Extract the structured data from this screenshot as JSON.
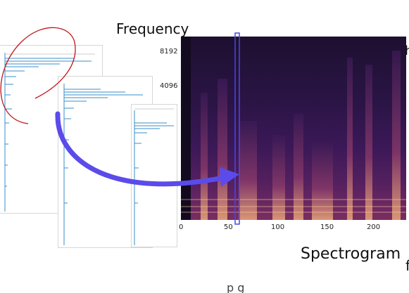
{
  "labels": {
    "frequency": "Frequency",
    "spectrogram": "Spectrogram",
    "cut_right_bottom": "f",
    "cut_right_top": "h",
    "cut_bottom": "p  g"
  },
  "spectrogram": {
    "y_ticks": [
      "8192",
      "4096"
    ],
    "x_ticks": [
      "0",
      "50",
      "100",
      "150",
      "200"
    ]
  },
  "colors": {
    "arrow": "#5b4bea",
    "curve": "#c0181e",
    "highlight_box": "#4848e8",
    "spectrum_lines": "#3a8fc8"
  }
}
